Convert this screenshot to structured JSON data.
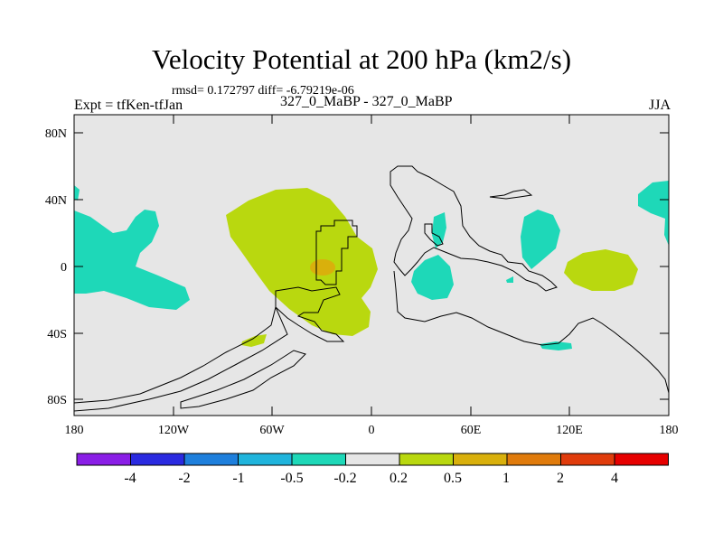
{
  "title": "Velocity Potential at 200 hPa (km2/s)",
  "stats_line": "rmsd= 0.172797 diff= -6.79219e-06",
  "experiment_label": "Expt = tfKen-tfJan",
  "comparison_label": "327_0_MaBP - 327_0_MaBP",
  "season_label": "JJA",
  "lat_ticks": [
    "80N",
    "40N",
    "0",
    "40S",
    "80S"
  ],
  "lon_ticks": [
    "180",
    "120W",
    "60W",
    "0",
    "60E",
    "120E",
    "180"
  ],
  "colorbar": {
    "labels": [
      "-4",
      "-2",
      "-1",
      "-0.5",
      "-0.2",
      "0.2",
      "0.5",
      "1",
      "2",
      "4"
    ],
    "colors": [
      "#8a1ee6",
      "#2a2ae0",
      "#1e7fdc",
      "#1fb4dc",
      "#1ed8b8",
      "#e6e6e6",
      "#b9d80f",
      "#d9b00c",
      "#e07b0c",
      "#e03c0c",
      "#e60000"
    ]
  },
  "background_color": "#e6e6e6"
}
